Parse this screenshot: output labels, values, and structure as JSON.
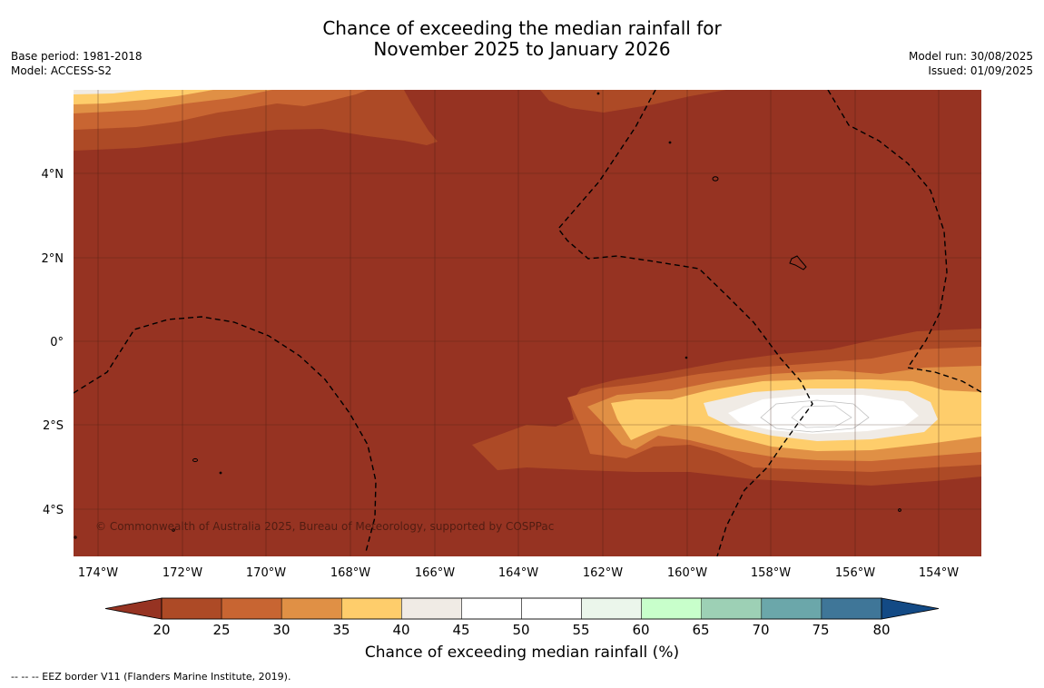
{
  "title": {
    "line1": "Chance of exceeding the median rainfall for",
    "line2": "November 2025 to January 2026"
  },
  "meta_left": {
    "base_period": "Base period: 1981-2018",
    "model": "Model: ACCESS-S2"
  },
  "meta_right": {
    "model_run": "Model run: 30/08/2025",
    "issued": "Issued: 01/09/2025"
  },
  "map": {
    "lat_labels": [
      "4°N",
      "2°N",
      "0°",
      "2°S",
      "4°S"
    ],
    "lon_labels": [
      "174°W",
      "172°W",
      "170°W",
      "168°W",
      "166°W",
      "164°W",
      "162°W",
      "160°W",
      "158°W",
      "156°W",
      "154°W"
    ],
    "copyright": "© Commonwealth of Australia 2025, Bureau of Meteorology, supported by COSPPac"
  },
  "colorbar": {
    "ticks": [
      "20",
      "25",
      "30",
      "35",
      "40",
      "45",
      "50",
      "55",
      "60",
      "65",
      "70",
      "75",
      "80"
    ],
    "colors": [
      "#ad4a26",
      "#c86532",
      "#e09045",
      "#fecd6b",
      "#f0ebe5",
      "#ffffff",
      "#ffffff",
      "#ebf6eb",
      "#c8ffcb",
      "#9dd0b5",
      "#6ba7aa",
      "#3f7698"
    ],
    "under_color": "#963322",
    "over_color": "#134a85",
    "label": "Chance of exceeding median rainfall (%)"
  },
  "footer": "-- -- -- EEZ border V11 (Flanders Marine Institute, 2019)."
}
